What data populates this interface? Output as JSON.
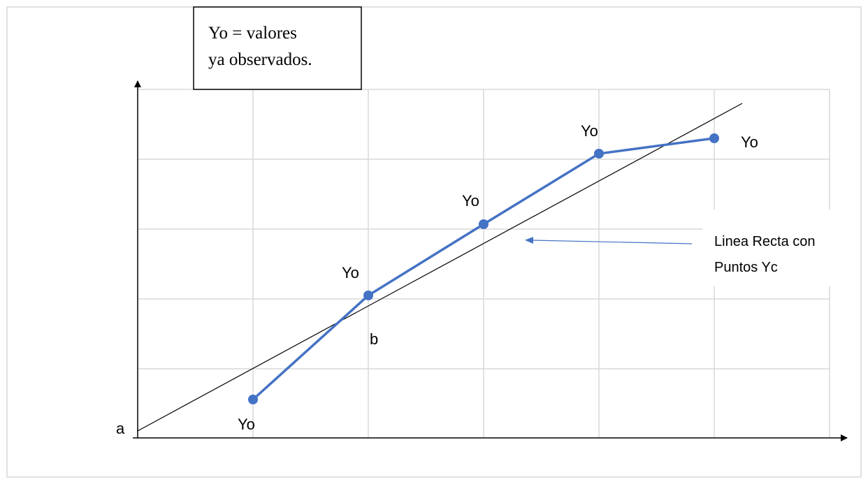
{
  "note": {
    "lines": [
      "Yo = valores",
      "ya observados."
    ]
  },
  "point_labels": [
    "Yo",
    "Yo",
    "Yo",
    "Yo",
    "Yo"
  ],
  "intercept_label": "a",
  "slope_label": "b",
  "line_label": {
    "lines": [
      "Linea Recta con",
      "Puntos Yc"
    ]
  }
}
